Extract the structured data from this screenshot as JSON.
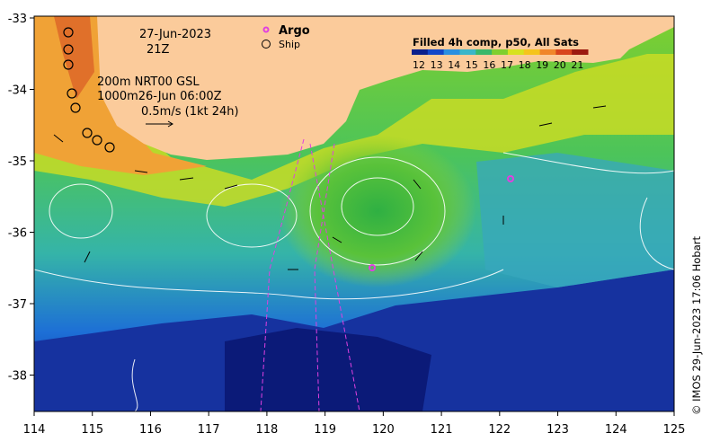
{
  "map": {
    "date": "27-Jun-2023",
    "time": "21Z",
    "depth_line1": "200m  NRT00 GSL",
    "depth_line2": "1000m26-Jun 06:00Z",
    "scale_label": "0.5m/s (1kt 24h)",
    "legend": {
      "argo": "Argo",
      "ship": "Ship"
    },
    "colorbar": {
      "title": "Filled 4h comp, p50, All Sats",
      "ticks": [
        "12",
        "13",
        "14",
        "15",
        "16",
        "17",
        "18",
        "19",
        "20",
        "21"
      ],
      "colors": [
        "#0a1f8c",
        "#1246c8",
        "#2a8fe0",
        "#3ab6c9",
        "#39b86a",
        "#7fcf2e",
        "#d7e21e",
        "#f5c41b",
        "#f0862a",
        "#d8441c",
        "#9c1a10"
      ]
    },
    "x_ticks": [
      "114",
      "115",
      "116",
      "117",
      "118",
      "119",
      "120",
      "121",
      "122",
      "123",
      "124",
      "125"
    ],
    "y_ticks": [
      "-33",
      "-34",
      "-35",
      "-36",
      "-37",
      "-38"
    ],
    "credit": "© IMOS 29-Jun-2023 17:06 Hobart",
    "colors": {
      "land": "#fbcb9b",
      "axis": "#000000",
      "argo": "#e040e0",
      "contour": "#ffffff"
    }
  }
}
